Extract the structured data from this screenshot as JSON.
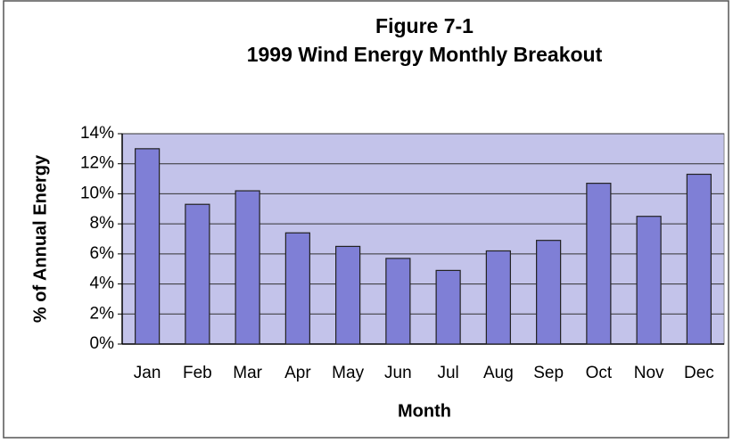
{
  "chart_data": {
    "type": "bar",
    "title": "Figure 7-1",
    "subtitle": "1999 Wind Energy Monthly Breakout",
    "x_label": "Month",
    "y_label": "% of Annual Energy",
    "categories": [
      "Jan",
      "Feb",
      "Mar",
      "Apr",
      "May",
      "Jun",
      "Jul",
      "Aug",
      "Sep",
      "Oct",
      "Nov",
      "Dec"
    ],
    "values": [
      13.0,
      9.3,
      10.2,
      7.4,
      6.5,
      5.7,
      4.9,
      6.2,
      6.9,
      10.7,
      8.5,
      11.3
    ],
    "color": "#7f7fd6",
    "ylim": [
      0,
      14
    ],
    "yticks": [
      {
        "value": 0,
        "label": "0%"
      },
      {
        "value": 2,
        "label": "2%"
      },
      {
        "value": 4,
        "label": "4%"
      },
      {
        "value": 6,
        "label": "6%"
      },
      {
        "value": 8,
        "label": "8%"
      },
      {
        "value": 10,
        "label": "10%"
      },
      {
        "value": 12,
        "label": "12%"
      },
      {
        "value": 14,
        "label": "14%"
      }
    ],
    "grid": true
  }
}
